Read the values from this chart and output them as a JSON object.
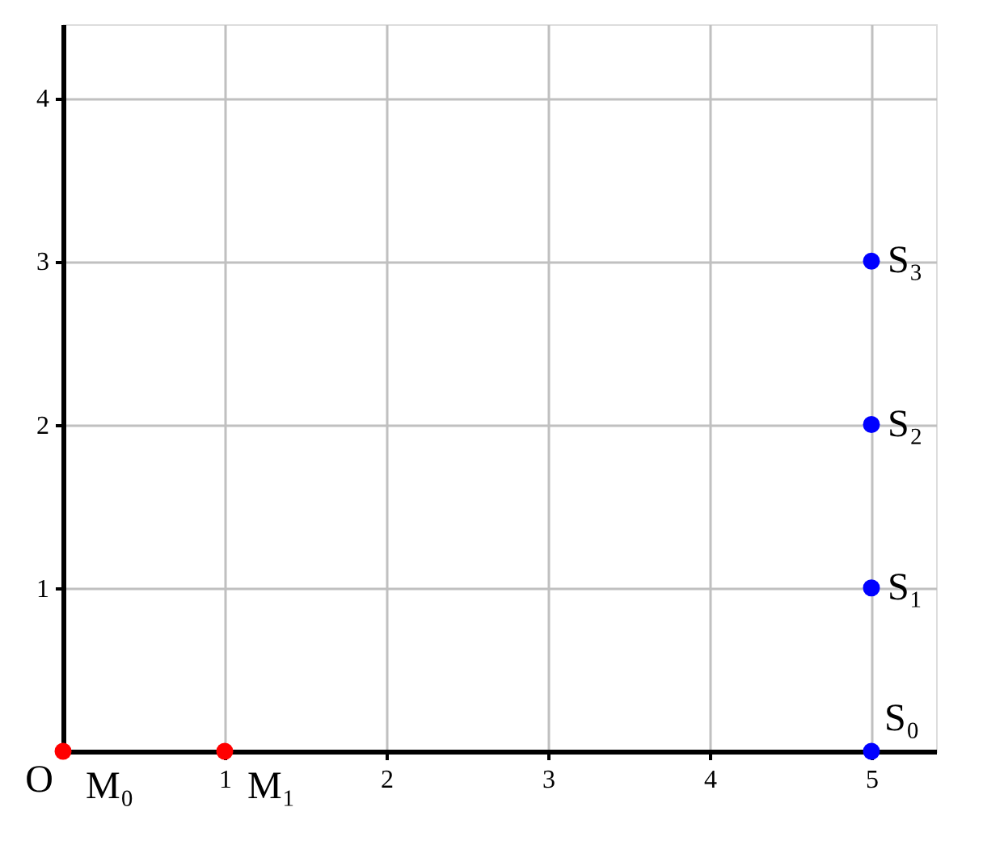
{
  "chart_data": {
    "type": "scatter",
    "xlim": [
      0,
      5.4
    ],
    "ylim": [
      0,
      4.45
    ],
    "xticks": [
      1,
      2,
      3,
      4,
      5
    ],
    "yticks": [
      1,
      2,
      3,
      4
    ],
    "grid": true,
    "marker": "circle",
    "series": [
      {
        "color": "#ff0000",
        "x": [
          0,
          1
        ],
        "values": [
          0,
          0
        ]
      },
      {
        "color": "#0000ff",
        "x": [
          5,
          5,
          5,
          5
        ],
        "values": [
          0,
          1,
          2,
          3
        ]
      }
    ],
    "annotations": [
      {
        "text": "O",
        "x": 0,
        "y": 0
      },
      {
        "text": "M₀",
        "x": 0,
        "y": 0
      },
      {
        "text": "M₁",
        "x": 1,
        "y": 0
      },
      {
        "text": "S₀",
        "x": 5,
        "y": 0
      },
      {
        "text": "S₁",
        "x": 5,
        "y": 1
      },
      {
        "text": "S₂",
        "x": 5,
        "y": 2
      },
      {
        "text": "S₃",
        "x": 5,
        "y": 3
      }
    ]
  }
}
